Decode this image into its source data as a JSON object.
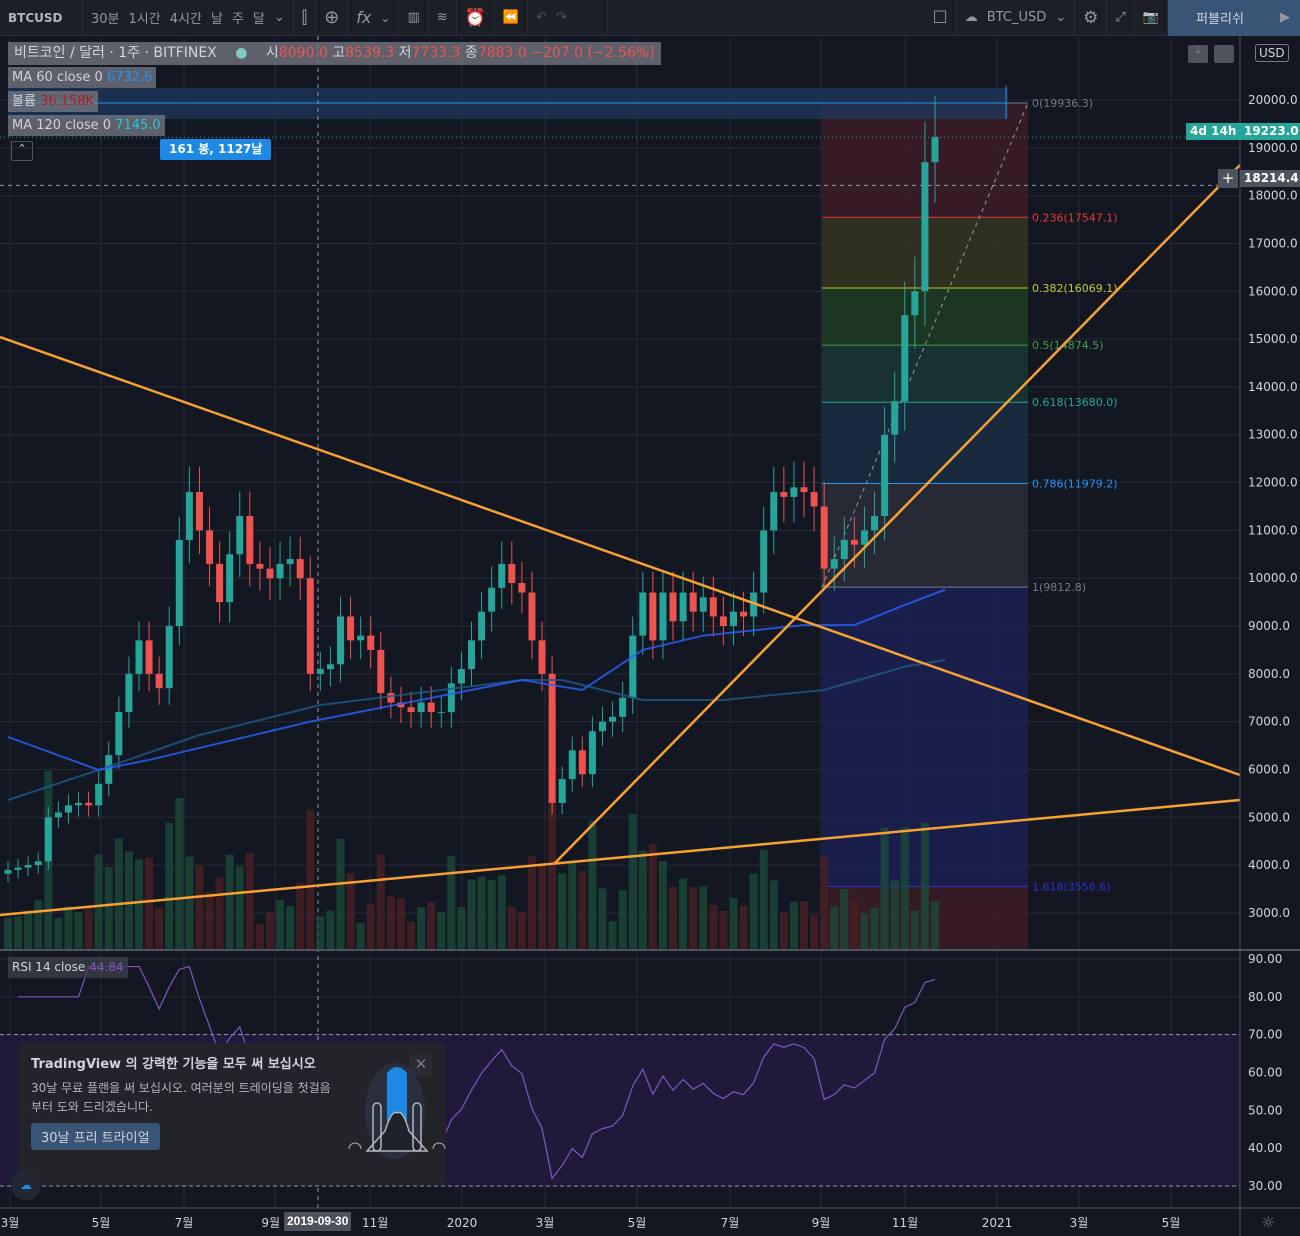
{
  "toolbar": {
    "symbol": "BTCUSD",
    "intervals": [
      "30분",
      "1시간",
      "4시간",
      "날",
      "주",
      "달"
    ],
    "layout_name": "BTC_USD",
    "publish": "퍼블리쉬"
  },
  "legend": {
    "title": "비트코인 / 달러 · 1주 · BITFINEX",
    "o_label": "시",
    "o": "8090.0",
    "h_label": "고",
    "h": "8539.3",
    "l_label": "저",
    "l": "7733.3",
    "c_label": "종",
    "c": "7883.0",
    "chg": "−207.0 (−2.56%)",
    "ma60_label": "MA 60 close 0",
    "ma60": "6732.6",
    "vol_label": "볼륨",
    "vol": "36.158K",
    "ma120_label": "MA 120 close 0",
    "ma120": "7145.0",
    "rsi_label": "RSI 14 close",
    "rsi": "44.84"
  },
  "measure_label": "161 봉, 1127날",
  "price_axis": {
    "currency": "USD",
    "ticks": [
      20000,
      19000,
      18000,
      17000,
      16000,
      15000,
      14000,
      13000,
      12000,
      11000,
      10000,
      9000,
      8000,
      7000,
      6000,
      5000,
      4000,
      3000
    ],
    "last_price": "19223.0",
    "countdown": "4d 14h",
    "crosshair": "18214.4"
  },
  "rsi_axis": {
    "ticks": [
      "90.00",
      "80.00",
      "70.00",
      "60.00",
      "50.00",
      "40.00",
      "30.00"
    ]
  },
  "time_axis": {
    "labels": [
      "3월",
      "5월",
      "7월",
      "9월",
      "11월",
      "2020",
      "3월",
      "5월",
      "7월",
      "9월",
      "11월",
      "2021",
      "3월",
      "5월"
    ],
    "crosshair": "2019-09-30"
  },
  "fib": [
    {
      "level": "0",
      "price": 19936.3,
      "label": "0(19936.3)",
      "color": "#787b86",
      "fill": "#3a1c26"
    },
    {
      "level": "0.236",
      "price": 17547.1,
      "label": "0.236(17547.1)",
      "color": "#e53935",
      "fill": "#33331f"
    },
    {
      "level": "0.382",
      "price": 16069.1,
      "label": "0.382(16069.1)",
      "color": "#c0ca33",
      "fill": "#1e3a22"
    },
    {
      "level": "0.5",
      "price": 14874.5,
      "label": "0.5(14874.5)",
      "color": "#43a047",
      "fill": "#1a3535"
    },
    {
      "level": "0.618",
      "price": 13680.0,
      "label": "0.618(13680.0)",
      "color": "#26a69a",
      "fill": "#1b2c40"
    },
    {
      "level": "0.786",
      "price": 11979.2,
      "label": "0.786(11979.2)",
      "color": "#2196f3",
      "fill": "#2a2c36"
    },
    {
      "level": "1",
      "price": 9812.8,
      "label": "1(9812.8)",
      "color": "#787b86",
      "fill": "#1c1f50"
    },
    {
      "level": "1.618",
      "price": 3556.6,
      "label": "1.618(3556.6)",
      "color": "#3030d0",
      "fill": "#3a1c26"
    }
  ],
  "chart": {
    "closes": [
      3900,
      3950,
      4000,
      4080,
      5000,
      5100,
      5250,
      5300,
      5250,
      5700,
      6300,
      7200,
      8000,
      8700,
      8000,
      7700,
      9000,
      10800,
      11800,
      11000,
      10300,
      9500,
      10500,
      11300,
      10300,
      10200,
      10000,
      10300,
      10400,
      10000,
      8000,
      8100,
      8200,
      9200,
      8700,
      8800,
      8500,
      7600,
      7400,
      7300,
      7200,
      7400,
      7200,
      7200,
      7800,
      8100,
      8700,
      9300,
      9800,
      10300,
      9900,
      9700,
      8700,
      8000,
      5300,
      5800,
      6400,
      5900,
      6800,
      7000,
      7100,
      7500,
      8800,
      9700,
      8700,
      9700,
      9100,
      9700,
      9300,
      9600,
      9200,
      9000,
      9300,
      9200,
      9700,
      11000,
      11800,
      11700,
      11900,
      11800,
      11500,
      10200,
      10400,
      10800,
      10700,
      11000,
      11300,
      13000,
      13700,
      15500,
      16000,
      18700,
      19223
    ],
    "ma_a": [
      [
        0,
        5362
      ],
      [
        9,
        5989
      ],
      [
        19,
        6721
      ],
      [
        31,
        7348
      ],
      [
        51,
        7871
      ],
      [
        55,
        7871
      ],
      [
        63,
        7453
      ],
      [
        71,
        7453
      ],
      [
        81,
        7662
      ],
      [
        89,
        8150
      ],
      [
        93,
        8290
      ]
    ],
    "ma_b": [
      [
        0,
        6680
      ],
      [
        9,
        5990
      ],
      [
        14,
        6200
      ],
      [
        30,
        7000
      ],
      [
        51,
        7871
      ],
      [
        57,
        7662
      ],
      [
        63,
        8500
      ],
      [
        69,
        8800
      ],
      [
        79,
        9020
      ],
      [
        84,
        9020
      ],
      [
        89,
        9440
      ],
      [
        93,
        9760
      ]
    ],
    "colors": {
      "up": "#26a69a",
      "down": "#ef5350",
      "trend": "#f7a034",
      "ma_a": "#1e5a8a",
      "ma_b": "#2962ff",
      "rsi": "#7e57c2"
    }
  },
  "popup": {
    "title": "TradingView 의 강력한 기능을 모두 써 보십시오",
    "body": "30날 무료 플랜을 써 보십시오. 여러분의 트레이딩을 첫걸음부터 도와 드리겠습니다.",
    "cta": "30날 프리 트라이얼"
  }
}
